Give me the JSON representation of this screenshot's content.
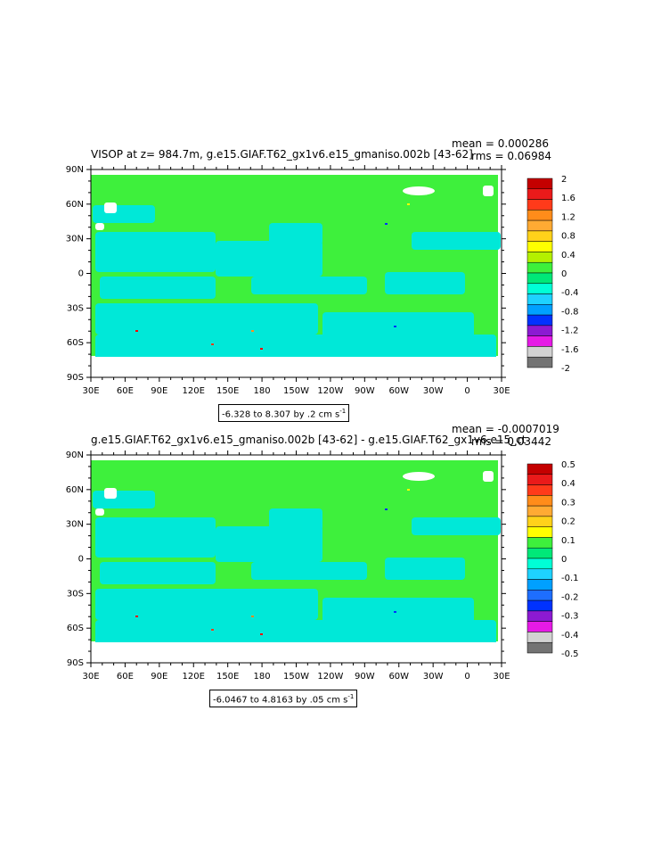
{
  "panels": [
    {
      "title": "VISOP at z= 984.7m, g.e15.GIAF.T62_gx1v6.e15_gmaniso.002b [43-62]",
      "mean": "mean = 0.000286",
      "rms": "rms = 0.06984",
      "range": "-6.328 to 8.307 by .2 cm s",
      "range_exp": "-1",
      "colorbar": {
        "labels": [
          "2",
          "1.6",
          "1.2",
          "0.8",
          "0.4",
          "0",
          "-0.4",
          "-0.8",
          "-1.2",
          "-1.6",
          "-2"
        ],
        "colors": [
          "#c40000",
          "#ea1a1a",
          "#ff3a1a",
          "#ff8c1a",
          "#ffaa33",
          "#ffd21a",
          "#ffff00",
          "#b4f000",
          "#3ef03c",
          "#00e878",
          "#00ffd6",
          "#1ed2ff",
          "#00a0ff",
          "#0032ff",
          "#8c1ad2",
          "#e61ae6",
          "#d2d2d2",
          "#737373"
        ]
      }
    },
    {
      "title": "g.e15.GIAF.T62_gx1v6.e15_gmaniso.002b [43-62] - g.e15.GIAF.T62_gx1v6.e15_ct",
      "mean": "mean = -0.0007019",
      "rms": "rms = 0.03442",
      "range": "-6.0467 to 4.8163 by .05 cm s",
      "range_exp": "-1",
      "colorbar": {
        "labels": [
          "0.5",
          "0.4",
          "0.3",
          "0.2",
          "0.1",
          "0",
          "-0.1",
          "-0.2",
          "-0.3",
          "-0.4",
          "-0.5"
        ],
        "colors": [
          "#c40000",
          "#ea1a1a",
          "#ff3a1a",
          "#ff8c1a",
          "#ffaa33",
          "#ffd21a",
          "#ffff00",
          "#3ef03c",
          "#00e878",
          "#00ffd6",
          "#1ed2ff",
          "#00a0ff",
          "#1e6eff",
          "#0032ff",
          "#8c1ad2",
          "#e61ae6",
          "#d2d2d2",
          "#737373"
        ]
      }
    }
  ],
  "axes": {
    "lat_labels": [
      "90N",
      "60N",
      "30N",
      "0",
      "30S",
      "60S",
      "90S"
    ],
    "lon_labels": [
      "30E",
      "60E",
      "90E",
      "120E",
      "150E",
      "180",
      "150W",
      "120W",
      "90W",
      "60W",
      "30W",
      "0",
      "30E"
    ]
  },
  "colors": {
    "land": "#3ef03c",
    "ocean": "#00e8d8",
    "ice": "#ffffff"
  }
}
